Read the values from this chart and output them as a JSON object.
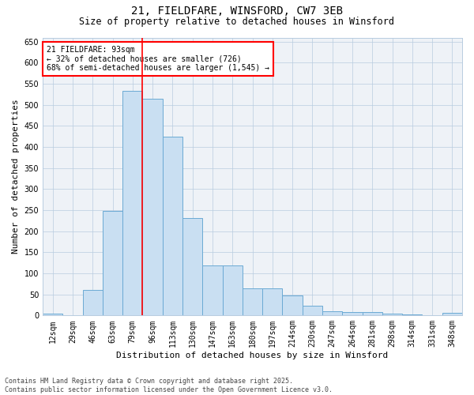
{
  "title": "21, FIELDFARE, WINSFORD, CW7 3EB",
  "subtitle": "Size of property relative to detached houses in Winsford",
  "xlabel": "Distribution of detached houses by size in Winsford",
  "ylabel": "Number of detached properties",
  "categories": [
    "12sqm",
    "29sqm",
    "46sqm",
    "63sqm",
    "79sqm",
    "96sqm",
    "113sqm",
    "130sqm",
    "147sqm",
    "163sqm",
    "180sqm",
    "197sqm",
    "214sqm",
    "230sqm",
    "247sqm",
    "264sqm",
    "281sqm",
    "298sqm",
    "314sqm",
    "331sqm",
    "348sqm"
  ],
  "values": [
    5,
    0,
    60,
    248,
    533,
    515,
    425,
    232,
    118,
    118,
    65,
    65,
    47,
    23,
    10,
    8,
    8,
    5,
    2,
    0,
    7
  ],
  "bar_color": "#c9dff2",
  "bar_edge_color": "#6baad4",
  "property_line_color": "red",
  "property_line_index": 4.5,
  "annotation_text": "21 FIELDFARE: 93sqm\n← 32% of detached houses are smaller (726)\n68% of semi-detached houses are larger (1,545) →",
  "annotation_box_color": "white",
  "annotation_box_edge": "red",
  "ylim": [
    0,
    660
  ],
  "yticks": [
    0,
    50,
    100,
    150,
    200,
    250,
    300,
    350,
    400,
    450,
    500,
    550,
    600,
    650
  ],
  "footer_text": "Contains HM Land Registry data © Crown copyright and database right 2025.\nContains public sector information licensed under the Open Government Licence v3.0.",
  "background_color": "#eef2f7",
  "grid_color": "#b8cce0",
  "title_fontsize": 10,
  "subtitle_fontsize": 8.5,
  "ylabel_fontsize": 8,
  "xlabel_fontsize": 8,
  "tick_fontsize": 7,
  "footer_fontsize": 6,
  "annotation_fontsize": 7
}
